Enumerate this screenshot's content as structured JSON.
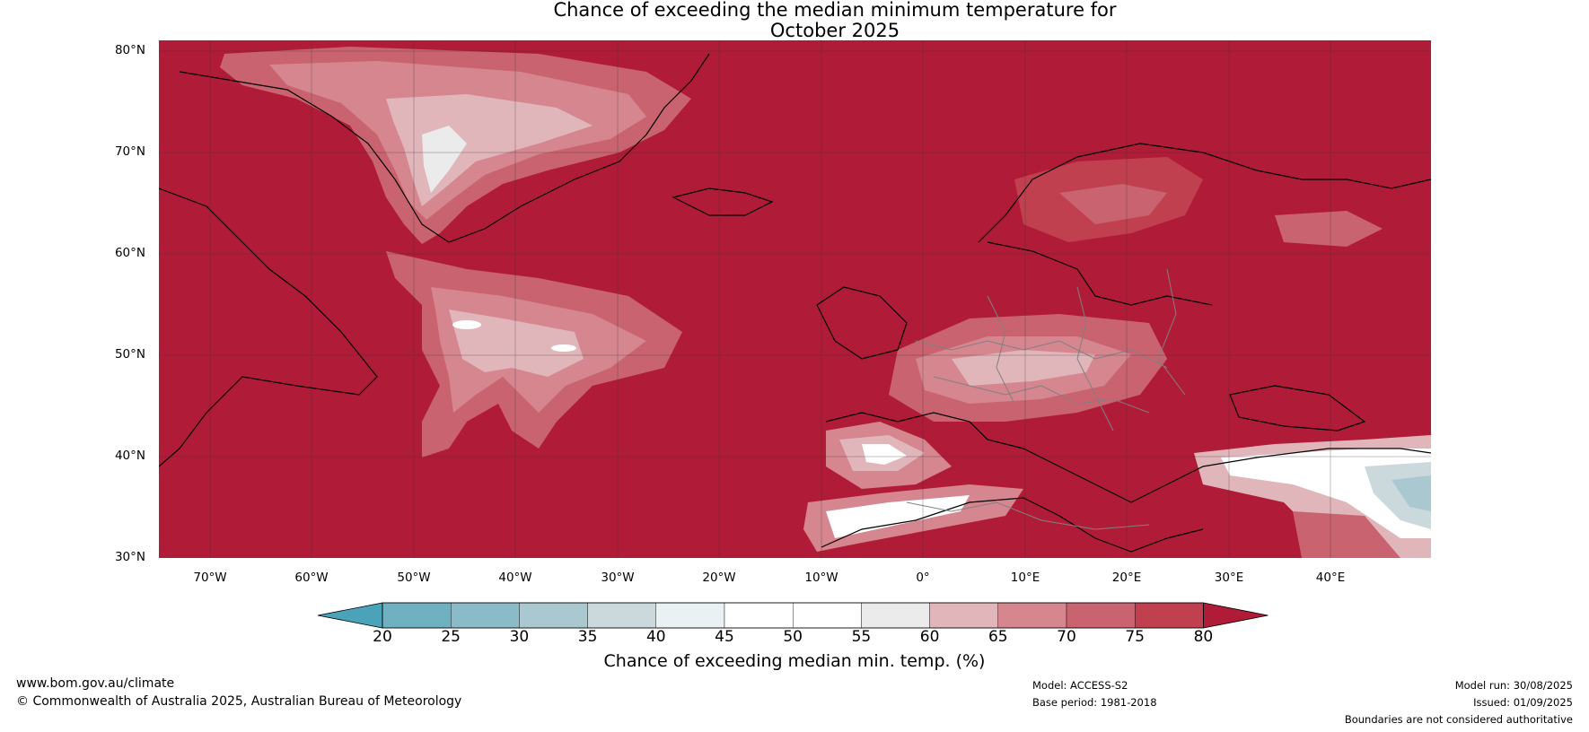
{
  "title_line1": "Chance of exceeding the median minimum temperature for",
  "title_line2": "October 2025",
  "latitude_labels": [
    "80°N",
    "70°N",
    "60°N",
    "50°N",
    "40°N",
    "30°N"
  ],
  "longitude_labels": [
    "70°W",
    "60°W",
    "50°W",
    "40°W",
    "30°W",
    "20°W",
    "10°W",
    "0°",
    "10°E",
    "20°E",
    "30°E",
    "40°E"
  ],
  "colorbar": {
    "ticks": [
      "20",
      "25",
      "30",
      "35",
      "40",
      "45",
      "50",
      "55",
      "60",
      "65",
      "70",
      "75",
      "80"
    ],
    "under_color": "#4aa3b8",
    "segment_colors": [
      "#6fb0c1",
      "#8bbbc9",
      "#aac8d0",
      "#cbd9dc",
      "#eaf1f2",
      "#ffffff",
      "#ffffff",
      "#ecebeb",
      "#e1b6bb",
      "#d5868f",
      "#c9636f",
      "#c0404f"
    ],
    "over_color": "#b01c38",
    "label": "Chance of exceeding median min. temp. (%)"
  },
  "footer": {
    "website": "www.bom.gov.au/climate",
    "copyright": "© Commonwealth of Australia 2025, Australian Bureau of Meteorology",
    "model": "Model: ACCESS-S2",
    "base_period": "Base period: 1981-2018",
    "model_run": "Model run: 30/08/2025",
    "issued": "Issued: 01/09/2025",
    "boundaries_note": "Boundaries are not considered authoritative"
  },
  "colors": {
    "high_probability": "#b01c38",
    "medium_high": "#c9636f",
    "medium": "#d5868f",
    "near_median": "#ffffff",
    "low": "#aac8d0"
  }
}
